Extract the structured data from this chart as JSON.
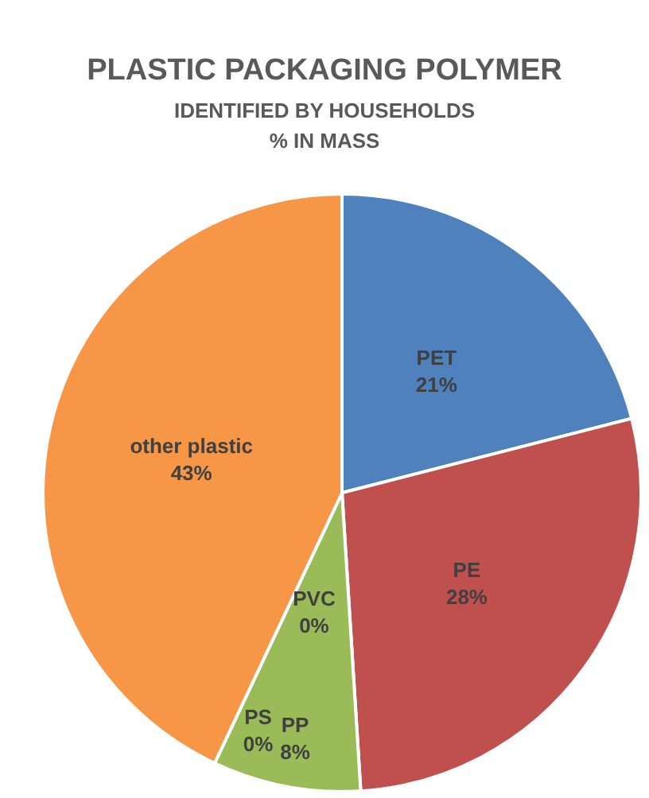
{
  "chart_data": {
    "type": "pie",
    "title": "PLASTIC PACKAGING POLYMER",
    "subtitle": "IDENTIFIED BY HOUSEHOLDS\n% IN MASS",
    "categories": [
      "PET",
      "PE",
      "PP",
      "PS",
      "PVC",
      "other plastic"
    ],
    "values": [
      21,
      28,
      8,
      0,
      0,
      43
    ],
    "value_labels": [
      "21%",
      "28%",
      "8%",
      "0%",
      "0%",
      "43%"
    ],
    "colors": [
      "#4f81bd",
      "#c0504d",
      "#9bbb59",
      "#8064a2",
      "#4bacc6",
      "#f79646"
    ]
  }
}
